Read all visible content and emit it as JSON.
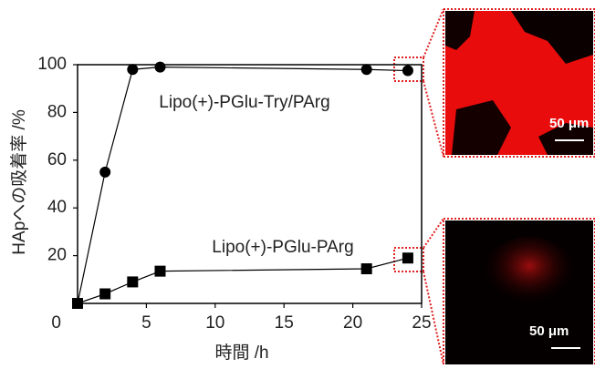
{
  "chart_data": {
    "type": "scatter",
    "xlabel": "時間 /h",
    "ylabel": "HApへの吸着率 /%",
    "xlim": [
      0,
      25
    ],
    "ylim": [
      0,
      100
    ],
    "xticks": [
      5,
      10,
      15,
      20,
      25
    ],
    "yticks": [
      0,
      20,
      40,
      60,
      80,
      100
    ],
    "series": [
      {
        "name": "Lipo(+)-PGlu-Try/PArg",
        "color": "#000000",
        "marker": "circle",
        "x": [
          0,
          2,
          4,
          6,
          21,
          24
        ],
        "values": [
          0,
          55,
          98,
          99,
          98,
          97.5
        ]
      },
      {
        "name": "Lipo(+)-PGlu-PArg",
        "color": "#000000",
        "marker": "square",
        "x": [
          0,
          2,
          4,
          6,
          21,
          24
        ],
        "values": [
          0,
          4,
          9,
          13.5,
          14.5,
          19
        ]
      }
    ],
    "insets": [
      "50 μm",
      "50 μm"
    ]
  }
}
